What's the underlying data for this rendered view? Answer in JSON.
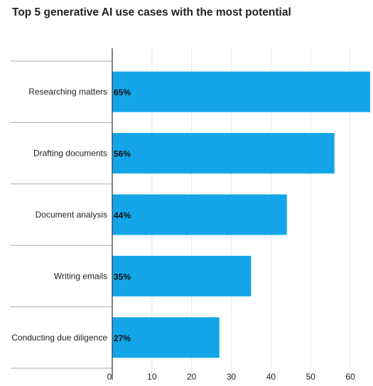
{
  "chart_data": {
    "type": "bar",
    "orientation": "horizontal",
    "title": "Top 5 generative AI use cases with the most potential",
    "categories": [
      "Researching matters",
      "Drafting documents",
      "Document analysis",
      "Writing emails",
      "Conducting due diligence"
    ],
    "values": [
      65,
      56,
      44,
      35,
      27
    ],
    "data_labels": [
      "65%",
      "56%",
      "44%",
      "35%",
      "27%"
    ],
    "xlim": [
      0,
      65
    ],
    "x_ticks": [
      0,
      10,
      20,
      30,
      40,
      50,
      60
    ],
    "xlabel": "",
    "ylabel": "",
    "grid": true,
    "legend": "none",
    "colors": {
      "bar": "#14a5e9",
      "grid": "#e6e6e6",
      "separator": "#aaaaaa",
      "axis": "#333333",
      "text": "#222222"
    }
  }
}
